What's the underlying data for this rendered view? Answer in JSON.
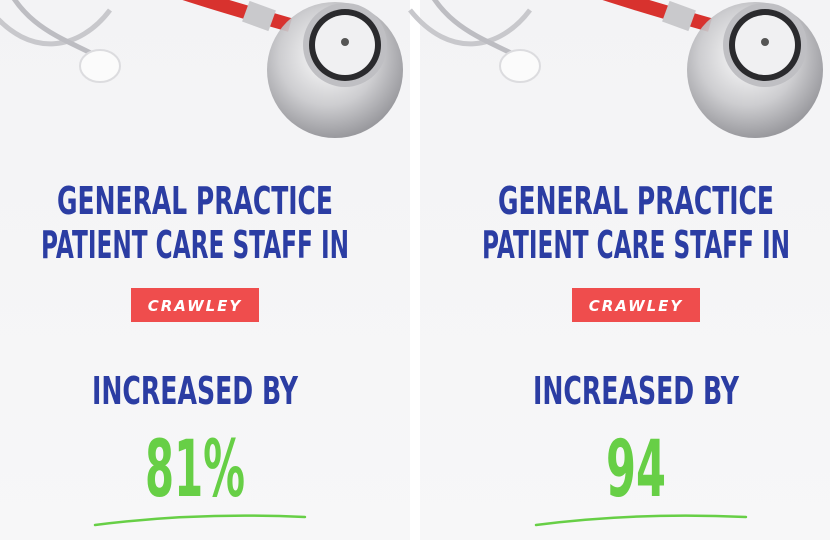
{
  "panels": [
    {
      "title_lines": [
        "GENERAL PRACTICE",
        "PATIENT CARE STAFF IN"
      ],
      "location": "CRAWLEY",
      "caption": "INCREASED BY",
      "figure": "81%"
    },
    {
      "title_lines": [
        "GENERAL PRACTICE",
        "PATIENT CARE STAFF IN"
      ],
      "location": "CRAWLEY",
      "caption": "INCREASED BY",
      "figure": "94"
    }
  ]
}
